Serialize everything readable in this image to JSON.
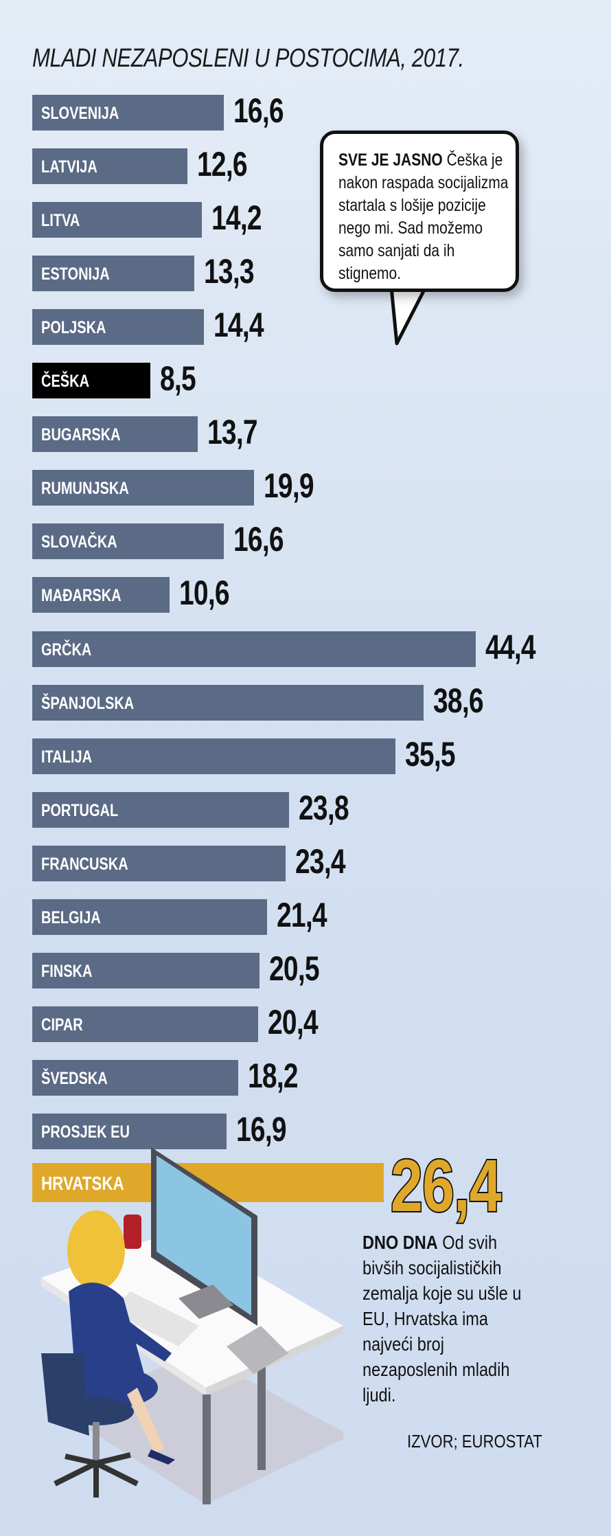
{
  "chart_data": {
    "type": "bar",
    "orientation": "horizontal",
    "title": "MLADI NEZAPOSLENI U POSTOCIMA, 2017.",
    "categories": [
      "SLOVENIJA",
      "LATVIJA",
      "LITVA",
      "ESTONIJA",
      "POLJSKA",
      "ČEŠKA",
      "BUGARSKA",
      "RUMUNJSKA",
      "SLOVAČKA",
      "MAĐARSKA",
      "GRČKA",
      "ŠPANJOLSKA",
      "ITALIJA",
      "PORTUGAL",
      "FRANCUSKA",
      "BELGIJA",
      "FINSKA",
      "CIPAR",
      "ŠVEDSKA",
      "PROSJEK EU",
      "HRVATSKA"
    ],
    "values": [
      16.6,
      12.6,
      14.2,
      13.3,
      14.4,
      8.5,
      13.7,
      19.9,
      16.6,
      10.6,
      44.4,
      38.6,
      35.5,
      23.8,
      23.4,
      21.4,
      20.5,
      20.4,
      18.2,
      16.9,
      26.4
    ],
    "value_labels": [
      "16,6",
      "12,6",
      "14,2",
      "13,3",
      "14,4",
      "8,5",
      "13,7",
      "19,9",
      "16,6",
      "10,6",
      "44,4",
      "38,6",
      "35,5",
      "23,8",
      "23,4",
      "21,4",
      "20,5",
      "20,4",
      "18,2",
      "16,9",
      "26,4"
    ],
    "highlight": {
      "ČEŠKA": "#000000",
      "HRVATSKA": "#e0a82a"
    },
    "bar_color": "#5b6a85",
    "grid": false,
    "xlabel": "",
    "ylabel": ""
  },
  "bubble": {
    "lead": "SVE JE JASNO",
    "text": " Češka je nakon raspada socija­lizma startala s lošije pozicije nego mi. Sad možemo samo sanjati da ih stignemo."
  },
  "note": {
    "lead": "DNO DNA",
    "text": " Od svih bivših socijalističkih zemalja koje su ušle u EU, Hrvatska ima najveći broj nezaposlenih mladih ljudi."
  },
  "source": "IZVOR; EUROSTAT"
}
